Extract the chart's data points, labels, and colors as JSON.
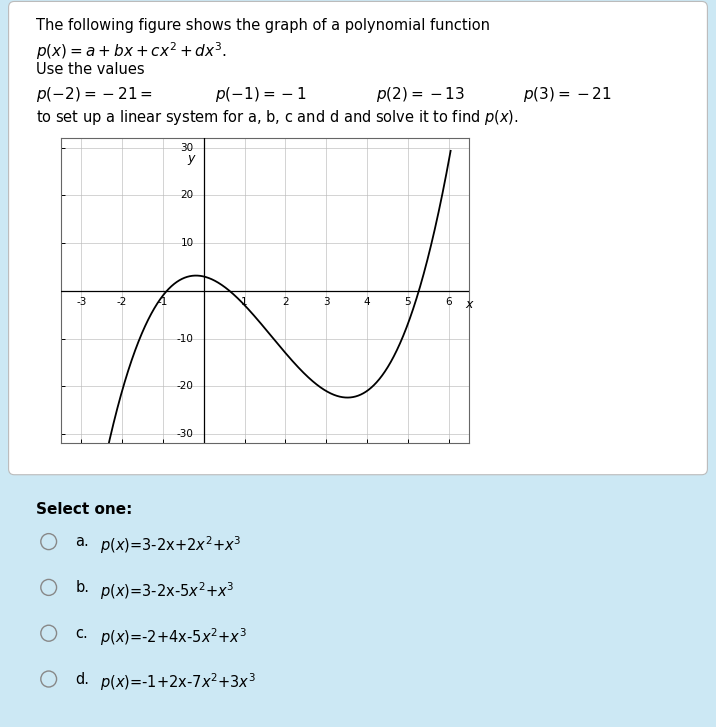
{
  "title_line1": "The following figure shows the graph of a polynomial function",
  "poly_coeffs": [
    3,
    -2,
    -5,
    1
  ],
  "xmin": -3,
  "xmax": 6,
  "ymin": -30,
  "ymax": 30,
  "xticks": [
    -3,
    -2,
    -1,
    1,
    2,
    3,
    4,
    5,
    6
  ],
  "yticks": [
    -30,
    -20,
    -10,
    10,
    20,
    30
  ],
  "background_color": "#cce8f4",
  "plot_bg": "#ffffff",
  "curve_color": "#000000",
  "grid_color": "#bbbbbb",
  "text_color": "#000000",
  "options_letters": [
    "a.",
    "b.",
    "c.",
    "d."
  ],
  "options_text": [
    "p(x)=3-2x+2x²+x³",
    "p(x)=3-2x-5x²+x³",
    "p(x)=-2+4x-5x²+x³",
    "p(x)=-1+2x-7x²+3x³"
  ]
}
